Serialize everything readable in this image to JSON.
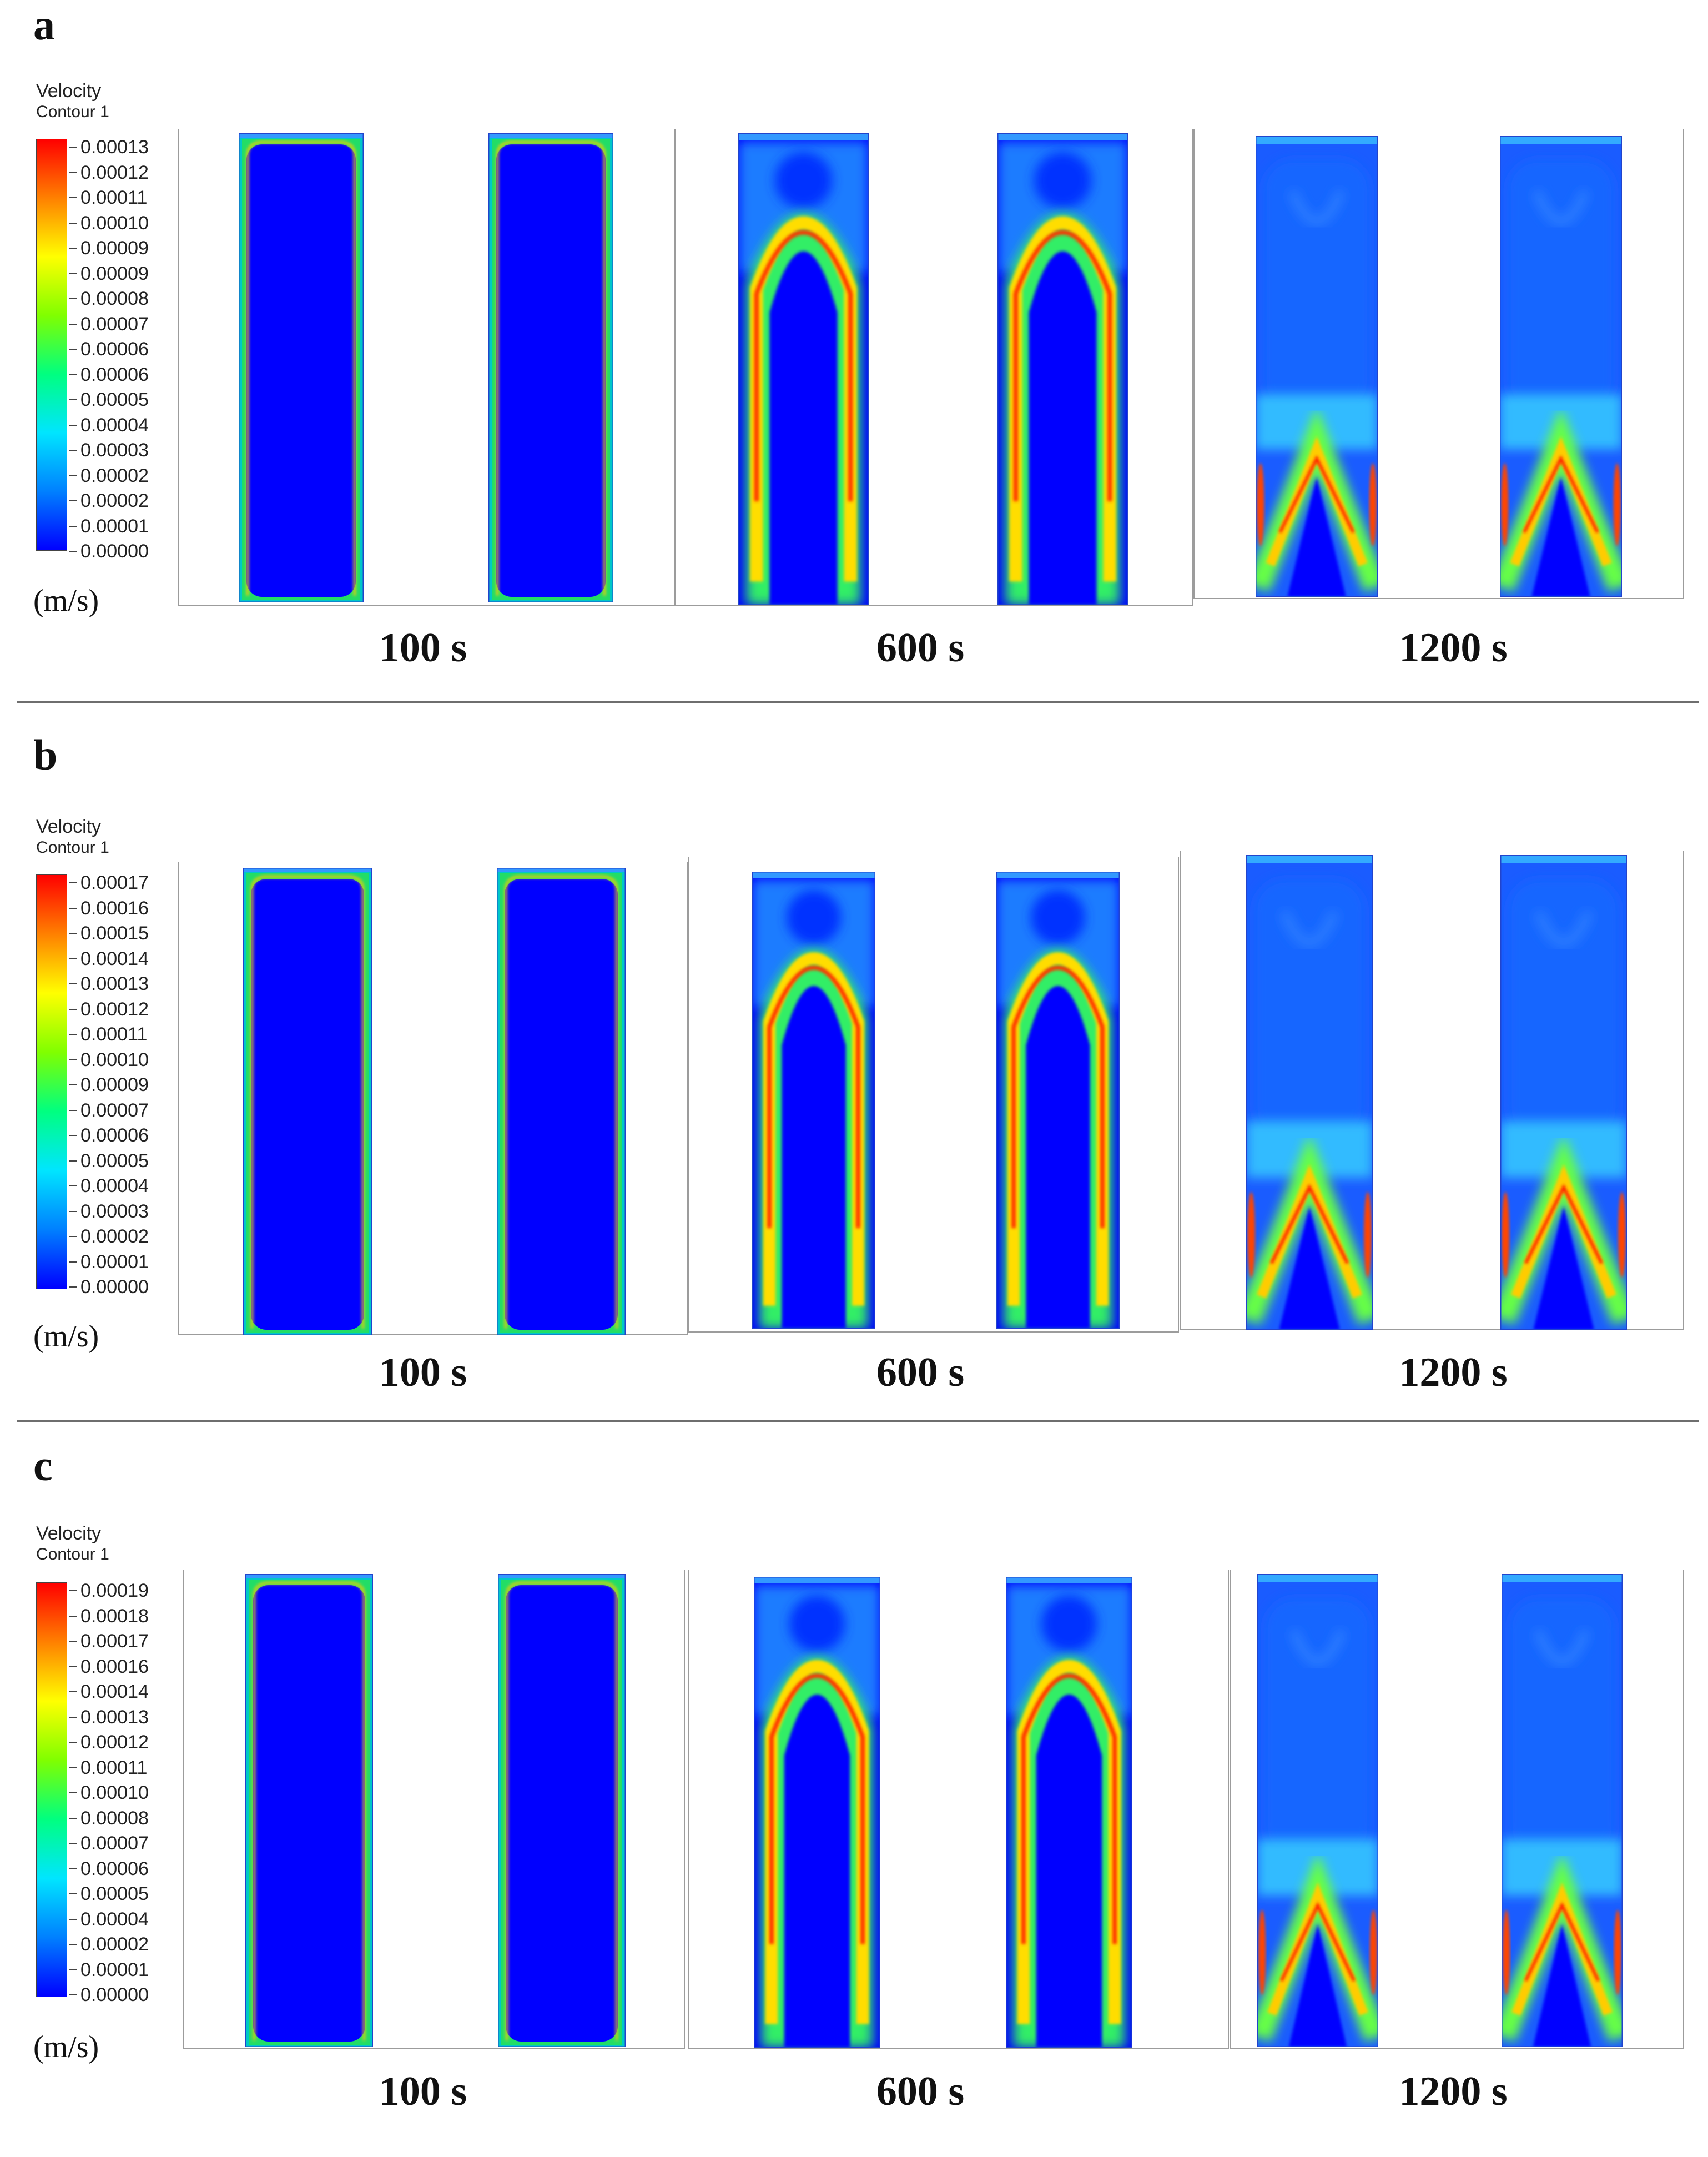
{
  "figure": {
    "unit_label": "(m/s)",
    "legend_title": "Velocity",
    "legend_subtitle": "Contour 1",
    "time_labels": [
      "100 s",
      "600 s",
      "1200 s"
    ],
    "colormap": [
      "#0000ff",
      "#0080ff",
      "#00e5ff",
      "#00ff80",
      "#80ff00",
      "#ffff00",
      "#ff8000",
      "#ff0000"
    ]
  },
  "panels": [
    {
      "letter": "a",
      "ticks": [
        "0.00013",
        "0.00012",
        "0.00011",
        "0.00010",
        "0.00009",
        "0.00009",
        "0.00008",
        "0.00007",
        "0.00006",
        "0.00006",
        "0.00005",
        "0.00004",
        "0.00003",
        "0.00002",
        "0.00002",
        "0.00001",
        "0.00000"
      ]
    },
    {
      "letter": "b",
      "ticks": [
        "0.00017",
        "0.00016",
        "0.00015",
        "0.00014",
        "0.00013",
        "0.00012",
        "0.00011",
        "0.00010",
        "0.00009",
        "0.00007",
        "0.00006",
        "0.00005",
        "0.00004",
        "0.00003",
        "0.00002",
        "0.00001",
        "0.00000"
      ]
    },
    {
      "letter": "c",
      "ticks": [
        "0.00019",
        "0.00018",
        "0.00017",
        "0.00016",
        "0.00014",
        "0.00013",
        "0.00012",
        "0.00011",
        "0.00010",
        "0.00008",
        "0.00007",
        "0.00006",
        "0.00005",
        "0.00004",
        "0.00002",
        "0.00001",
        "0.00000"
      ]
    }
  ]
}
